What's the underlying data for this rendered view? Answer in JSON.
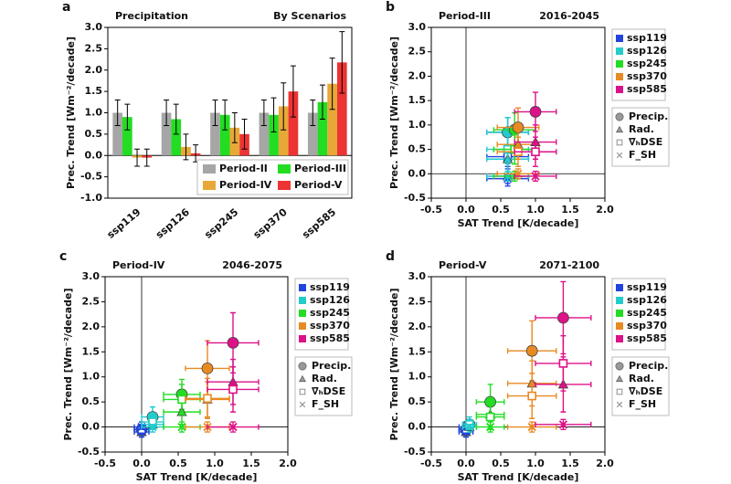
{
  "chart_data": [
    {
      "type": "bar",
      "label": "a",
      "title": "Precipitation",
      "subtitle": "By Scenarios",
      "ylabel": "Prec. Trend  [Wm⁻²/decade]",
      "categories": [
        "ssp119",
        "ssp126",
        "ssp245",
        "ssp370",
        "ssp585"
      ],
      "series": [
        {
          "name": "Period-II",
          "color": "#a6a6a6",
          "values": [
            1.0,
            1.0,
            1.0,
            1.0,
            1.0
          ],
          "errors": [
            0.3,
            0.3,
            0.3,
            0.3,
            0.3
          ]
        },
        {
          "name": "Period-III",
          "color": "#22dd22",
          "values": [
            0.9,
            0.85,
            0.95,
            0.95,
            1.25
          ],
          "errors": [
            0.3,
            0.35,
            0.35,
            0.4,
            0.4
          ]
        },
        {
          "name": "Period-IV",
          "color": "#e8a838",
          "values": [
            -0.05,
            0.2,
            0.65,
            1.15,
            1.68
          ],
          "errors": [
            0.2,
            0.3,
            0.35,
            0.55,
            0.6
          ]
        },
        {
          "name": "Period-V",
          "color": "#ee3333",
          "values": [
            -0.05,
            0.05,
            0.5,
            1.5,
            2.18
          ],
          "errors": [
            0.2,
            0.2,
            0.35,
            0.6,
            0.72
          ]
        }
      ],
      "ylim": [
        -1.0,
        3.0
      ],
      "yticks": [
        {
          "value": -1,
          "label": "-1.0"
        },
        -0.5,
        {
          "value": 0,
          "label": "0.0"
        },
        0.5,
        {
          "value": 1,
          "label": "1.0"
        },
        1.5,
        {
          "value": 2,
          "label": "2.0"
        },
        2.5,
        {
          "value": 3,
          "label": "3.0"
        }
      ],
      "legend": "lower right"
    },
    {
      "type": "scatter",
      "label": "b",
      "title": "Period-III",
      "subtitle": "2016-2045",
      "xlabel": "SAT Trend [K/decade]",
      "ylabel": "Prec. Trend [Wm⁻²/decade]",
      "markers": [
        {
          "name": "Precip.",
          "shape": "circle"
        },
        {
          "name": "Rad.",
          "shape": "triangle"
        },
        {
          "name": "∇̄ₕDSE",
          "shape": "square"
        },
        {
          "name": "F_SH",
          "shape": "x"
        }
      ],
      "series": [
        {
          "name": "ssp119",
          "color": "#2244dd",
          "x": 0.6,
          "xerr": 0.3,
          "values": [
            0.85,
            -0.05,
            0.35,
            -0.1
          ],
          "yerr": [
            0.3,
            0.2,
            0.25,
            0.1
          ]
        },
        {
          "name": "ssp126",
          "color": "#22cccc",
          "x": 0.6,
          "xerr": 0.3,
          "values": [
            0.85,
            0.3,
            0.5,
            -0.05
          ],
          "yerr": [
            0.3,
            0.25,
            0.3,
            0.1
          ]
        },
        {
          "name": "ssp245",
          "color": "#22dd22",
          "x": 0.7,
          "xerr": 0.3,
          "values": [
            0.9,
            0.5,
            0.5,
            -0.05
          ],
          "yerr": [
            0.35,
            0.3,
            0.3,
            0.1
          ]
        },
        {
          "name": "ssp370",
          "color": "#e88a22",
          "x": 0.75,
          "xerr": 0.3,
          "values": [
            0.95,
            0.6,
            0.45,
            0.0
          ],
          "yerr": [
            0.4,
            0.3,
            0.3,
            0.1
          ]
        },
        {
          "name": "ssp585",
          "color": "#dd1188",
          "x": 1.0,
          "xerr": 0.3,
          "values": [
            1.27,
            0.65,
            0.45,
            -0.05
          ],
          "yerr": [
            0.4,
            0.35,
            0.3,
            0.1
          ]
        }
      ],
      "xlim": [
        -0.5,
        2.0
      ],
      "xticks": [
        -0.5,
        {
          "value": 0,
          "label": "0.0"
        },
        0.5,
        {
          "value": 1,
          "label": "1.0"
        },
        1.5,
        {
          "value": 2,
          "label": "2.0"
        }
      ],
      "ylim": [
        -0.5,
        3.0
      ],
      "yticks": [
        -0.5,
        {
          "value": 0,
          "label": "0.0"
        },
        0.5,
        {
          "value": 1,
          "label": "1.0"
        },
        1.5,
        {
          "value": 2,
          "label": "2.0"
        },
        2.5,
        {
          "value": 3,
          "label": "3.0"
        }
      ]
    },
    {
      "type": "scatter",
      "label": "c",
      "title": "Period-IV",
      "subtitle": "2046-2075",
      "xlabel": "SAT Trend [K/decade]",
      "ylabel": "Prec. Trend [Wm⁻²/decade]",
      "markers": [
        {
          "name": "Precip.",
          "shape": "circle"
        },
        {
          "name": "Rad.",
          "shape": "triangle"
        },
        {
          "name": "∇̄ₕDSE",
          "shape": "square"
        },
        {
          "name": "F_SH",
          "shape": "x"
        }
      ],
      "series": [
        {
          "name": "ssp119",
          "color": "#2244dd",
          "x": 0.0,
          "xerr": 0.1,
          "values": [
            -0.05,
            -0.1,
            -0.05,
            0.0
          ],
          "yerr": [
            0.15,
            0.1,
            0.1,
            0.05
          ]
        },
        {
          "name": "ssp126",
          "color": "#22cccc",
          "x": 0.15,
          "xerr": 0.15,
          "values": [
            0.2,
            0.05,
            0.1,
            0.0
          ],
          "yerr": [
            0.2,
            0.15,
            0.15,
            0.05
          ]
        },
        {
          "name": "ssp245",
          "color": "#22dd22",
          "x": 0.55,
          "xerr": 0.25,
          "values": [
            0.65,
            0.3,
            0.55,
            0.0
          ],
          "yerr": [
            0.3,
            0.25,
            0.3,
            0.1
          ]
        },
        {
          "name": "ssp370",
          "color": "#e88a22",
          "x": 0.9,
          "xerr": 0.3,
          "values": [
            1.17,
            0.55,
            0.57,
            0.0
          ],
          "yerr": [
            0.55,
            0.35,
            0.4,
            0.1
          ]
        },
        {
          "name": "ssp585",
          "color": "#dd1188",
          "x": 1.25,
          "xerr": 0.35,
          "values": [
            1.68,
            0.9,
            0.75,
            0.0
          ],
          "yerr": [
            0.6,
            0.45,
            0.45,
            0.1
          ]
        }
      ],
      "xlim": [
        -0.5,
        2.0
      ],
      "xticks": [
        -0.5,
        {
          "value": 0,
          "label": "0.0"
        },
        0.5,
        {
          "value": 1,
          "label": "1.0"
        },
        1.5,
        {
          "value": 2,
          "label": "2.0"
        }
      ],
      "ylim": [
        -0.5,
        3.0
      ],
      "yticks": [
        -0.5,
        {
          "value": 0,
          "label": "0.0"
        },
        0.5,
        {
          "value": 1,
          "label": "1.0"
        },
        1.5,
        {
          "value": 2,
          "label": "2.0"
        },
        2.5,
        {
          "value": 3,
          "label": "3.0"
        }
      ]
    },
    {
      "type": "scatter",
      "label": "d",
      "title": "Period-V",
      "subtitle": "2071-2100",
      "xlabel": "SAT Trend [K/decade]",
      "ylabel": "Prec. Trend [Wm⁻²/decade]",
      "markers": [
        {
          "name": "Precip.",
          "shape": "circle"
        },
        {
          "name": "Rad.",
          "shape": "triangle"
        },
        {
          "name": "∇̄ₕDSE",
          "shape": "square"
        },
        {
          "name": "F_SH",
          "shape": "x"
        }
      ],
      "series": [
        {
          "name": "ssp119",
          "color": "#2244dd",
          "x": 0.0,
          "xerr": 0.1,
          "values": [
            -0.05,
            -0.1,
            -0.05,
            0.0
          ],
          "yerr": [
            0.15,
            0.1,
            0.1,
            0.05
          ]
        },
        {
          "name": "ssp126",
          "color": "#22cccc",
          "x": 0.05,
          "xerr": 0.1,
          "values": [
            0.05,
            0.0,
            0.05,
            0.0
          ],
          "yerr": [
            0.15,
            0.1,
            0.1,
            0.05
          ]
        },
        {
          "name": "ssp245",
          "color": "#22dd22",
          "x": 0.35,
          "xerr": 0.2,
          "values": [
            0.5,
            0.25,
            0.2,
            0.0
          ],
          "yerr": [
            0.35,
            0.25,
            0.25,
            0.1
          ]
        },
        {
          "name": "ssp370",
          "color": "#e88a22",
          "x": 0.95,
          "xerr": 0.35,
          "values": [
            1.52,
            0.87,
            0.62,
            0.0
          ],
          "yerr": [
            0.6,
            0.45,
            0.45,
            0.1
          ]
        },
        {
          "name": "ssp585",
          "color": "#dd1188",
          "x": 1.4,
          "xerr": 0.4,
          "values": [
            2.18,
            0.85,
            1.27,
            0.05
          ],
          "yerr": [
            0.72,
            0.55,
            0.55,
            0.1
          ]
        }
      ],
      "xlim": [
        -0.5,
        2.0
      ],
      "xticks": [
        -0.5,
        {
          "value": 0,
          "label": "0.0"
        },
        0.5,
        {
          "value": 1,
          "label": "1.0"
        },
        1.5,
        {
          "value": 2,
          "label": "2.0"
        }
      ],
      "ylim": [
        -0.5,
        3.0
      ],
      "yticks": [
        -0.5,
        {
          "value": 0,
          "label": "0.0"
        },
        0.5,
        {
          "value": 1,
          "label": "1.0"
        },
        1.5,
        {
          "value": 2,
          "label": "2.0"
        },
        2.5,
        {
          "value": 3,
          "label": "3.0"
        }
      ]
    }
  ]
}
